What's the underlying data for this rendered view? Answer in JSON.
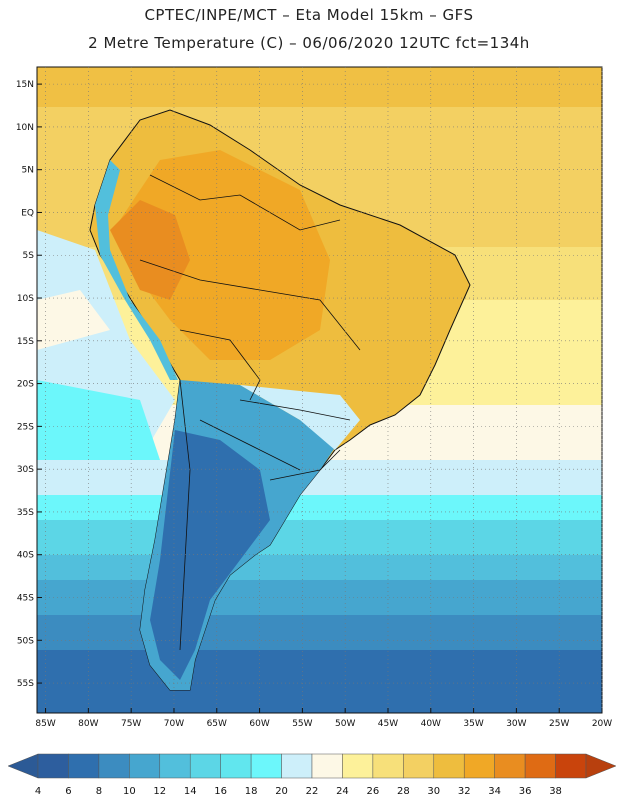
{
  "title": {
    "line1": "CPTEC/INPE/MCT –  Eta Model 15km – GFS",
    "line2": "2 Metre Temperature (C) – 06/06/2020 12UTC fct=134h"
  },
  "lat_labels": [
    "15N",
    "10N",
    "5N",
    "EQ",
    "5S",
    "10S",
    "15S",
    "20S",
    "25S",
    "30S",
    "35S",
    "40S",
    "45S",
    "50S",
    "55S"
  ],
  "lat_values": [
    15,
    10,
    5,
    0,
    -5,
    -10,
    -15,
    -20,
    -25,
    -30,
    -35,
    -40,
    -45,
    -50,
    -55
  ],
  "lon_labels": [
    "85W",
    "80W",
    "75W",
    "70W",
    "65W",
    "60W",
    "55W",
    "50W",
    "45W",
    "40W",
    "35W",
    "30W",
    "25W",
    "20W"
  ],
  "lon_values": [
    -85,
    -80,
    -75,
    -70,
    -65,
    -60,
    -55,
    -50,
    -45,
    -40,
    -35,
    -30,
    -25,
    -20
  ],
  "colorbar": {
    "labels": [
      "4",
      "6",
      "8",
      "10",
      "12",
      "14",
      "16",
      "18",
      "20",
      "22",
      "24",
      "26",
      "28",
      "30",
      "32",
      "34",
      "36",
      "38"
    ],
    "colors": [
      "#2d5e9e",
      "#2f6fae",
      "#3c8cc0",
      "#46a6cf",
      "#52bfdc",
      "#5cd6e6",
      "#61e6ee",
      "#6cf7fb",
      "#cdeffa",
      "#fdf8e6",
      "#fdf19a",
      "#f7e07a",
      "#f3d062",
      "#eebd3e",
      "#f0a826",
      "#e98d20",
      "#df6b14",
      "#c9440c"
    ],
    "low_color": "#2c5a96",
    "high_color": "#b8400e"
  }
}
